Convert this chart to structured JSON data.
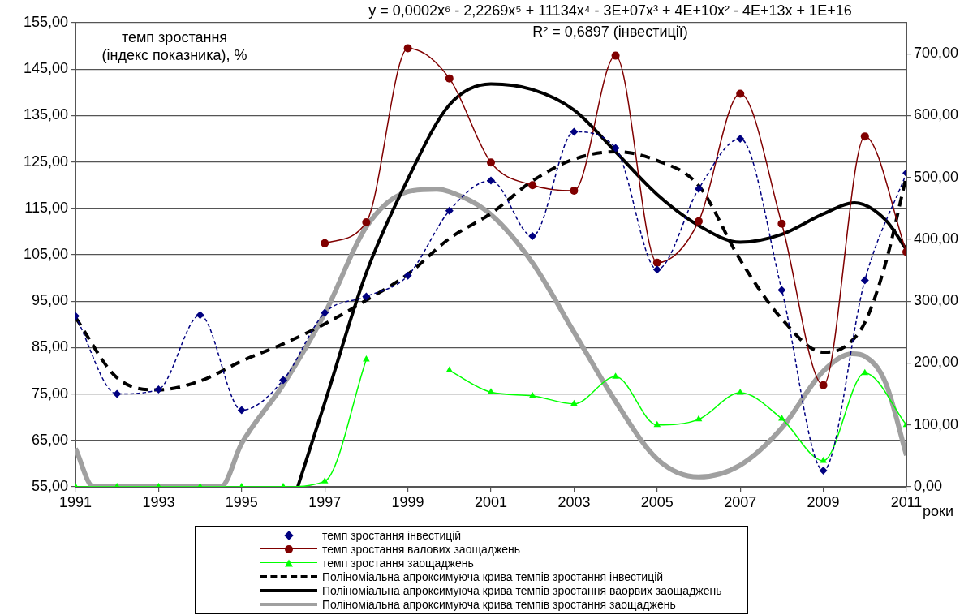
{
  "chart_data": {
    "type": "line",
    "xlabel": "роки",
    "ylabel": "темп зростання (індекс показника), %",
    "annotations": [
      "y = 0,0002x⁶ - 2,2269x⁵ + 11134x⁴ - 3E+07x³ + 4E+10x² - 4E+13x + 1E+16",
      "R² = 0,6897 (інвестиції)"
    ],
    "x": [
      1991,
      1992,
      1993,
      1994,
      1995,
      1996,
      1997,
      1998,
      1999,
      2000,
      2001,
      2002,
      2003,
      2004,
      2005,
      2006,
      2007,
      2008,
      2009,
      2010,
      2011
    ],
    "series": [
      {
        "name": "темп зростання інвестицій",
        "color": "#000080",
        "marker": "diamond",
        "line_style": "dashed",
        "values": [
          91.8,
          75,
          76,
          92,
          71.5,
          78,
          92.5,
          96,
          100.5,
          114.5,
          121,
          109,
          131.5,
          128,
          101.8,
          119.2,
          130,
          97.4,
          58.5,
          99.5,
          122.6
        ]
      },
      {
        "name": "темп зростання валових заощаджень",
        "color": "#800000",
        "marker": "circle",
        "line_style": "solid",
        "values": [
          null,
          null,
          null,
          null,
          null,
          null,
          107.5,
          112,
          149.5,
          143,
          124.9,
          120,
          118.8,
          147.9,
          103.3,
          112.2,
          139.7,
          111.7,
          76.9,
          130.5,
          105.6
        ]
      },
      {
        "name": "темп зростання заощаджень",
        "color": "#00ff00",
        "marker": "triangle",
        "line_style": "solid",
        "axis": "y2",
        "values": [
          0,
          0,
          0,
          0,
          0,
          0,
          9,
          206,
          null,
          188,
          153,
          147,
          134,
          178,
          100,
          109,
          152,
          110,
          42,
          184,
          100
        ]
      },
      {
        "name": "Поліноміальна апроксимуюча крива темпів зростання інвестицій",
        "color": "#000000",
        "marker": "none",
        "line_style": "dashed",
        "x": [
          1991,
          1992,
          1993,
          1994,
          1995,
          1996,
          1997,
          1998,
          1999,
          2000,
          2001,
          2002,
          2003,
          2004,
          2005,
          2006,
          2007,
          2008,
          2009,
          2009.5,
          2010,
          2010.5,
          2011
        ],
        "values": [
          91.5,
          78.5,
          75.9,
          77.8,
          82.1,
          85.8,
          90.1,
          95.2,
          100.8,
          108.5,
          113.9,
          120.9,
          125.6,
          127.2,
          125.3,
          119.9,
          103.9,
          91.2,
          84,
          85.1,
          90.4,
          103.2,
          122
        ]
      },
      {
        "name": "Поліноміальна апроксимуюча крива темпів зростання ваорвих заощаджень",
        "color": "#000000",
        "marker": "none",
        "line_style": "solid",
        "x": [
          1996.35,
          1997,
          1998,
          1999,
          2000,
          2001,
          2002,
          2003,
          2004,
          2005,
          2006,
          2007,
          2008,
          2009,
          2009.75,
          2010.5,
          2011
        ],
        "values": [
          55,
          73.1,
          101.1,
          121.3,
          137.3,
          141.8,
          140.6,
          136.2,
          127.2,
          118,
          111.3,
          107.7,
          109.4,
          113.8,
          116.2,
          112.5,
          106.1
        ]
      },
      {
        "name": "Поліноміальна апроксимуюча крива темпів зростання заощаджень",
        "color": "#a0a0a0",
        "marker": "none",
        "line_style": "solid",
        "axis": "y2",
        "x": [
          1991,
          1991.43,
          1994.5,
          1995,
          1996,
          1997,
          1998,
          1999,
          1999.7,
          2000,
          2001,
          2002,
          2003,
          2004,
          2005,
          2006,
          2007,
          2008,
          2009,
          2009.7,
          2010,
          2010.5,
          2011
        ],
        "values": [
          62,
          0,
          0,
          70,
          165,
          280,
          420,
          477,
          481,
          477,
          440,
          362,
          250,
          138,
          45,
          16,
          35,
          95,
          187,
          215,
          211,
          168,
          51
        ]
      }
    ],
    "xlim": [
      1991,
      2011
    ],
    "xticks": [
      1991,
      1993,
      1995,
      1997,
      1999,
      2001,
      2003,
      2005,
      2007,
      2009,
      2011
    ],
    "ylim": [
      55,
      155
    ],
    "yticks": [
      {
        "value": 55,
        "label": "55,00"
      },
      {
        "value": 65,
        "label": "65,00"
      },
      {
        "value": 75,
        "label": "75,00"
      },
      {
        "value": 85,
        "label": "85,00"
      },
      {
        "value": 95,
        "label": "95,00"
      },
      {
        "value": 105,
        "label": "105,00"
      },
      {
        "value": 115,
        "label": "115,00"
      },
      {
        "value": 125,
        "label": "125,00"
      },
      {
        "value": 135,
        "label": "135,00"
      },
      {
        "value": 145,
        "label": "145,00"
      },
      {
        "value": 155,
        "label": "155,00"
      }
    ],
    "y2lim": [
      0,
      750
    ],
    "y2ticks": [
      {
        "value": 0,
        "label": "0,00"
      },
      {
        "value": 100,
        "label": "100,00"
      },
      {
        "value": 200,
        "label": "200,00"
      },
      {
        "value": 300,
        "label": "300,00"
      },
      {
        "value": 400,
        "label": "400,00"
      },
      {
        "value": 500,
        "label": "500,00"
      },
      {
        "value": 600,
        "label": "600,00"
      },
      {
        "value": 700,
        "label": "700,00"
      }
    ],
    "grid": "y",
    "legend": "bottom"
  }
}
